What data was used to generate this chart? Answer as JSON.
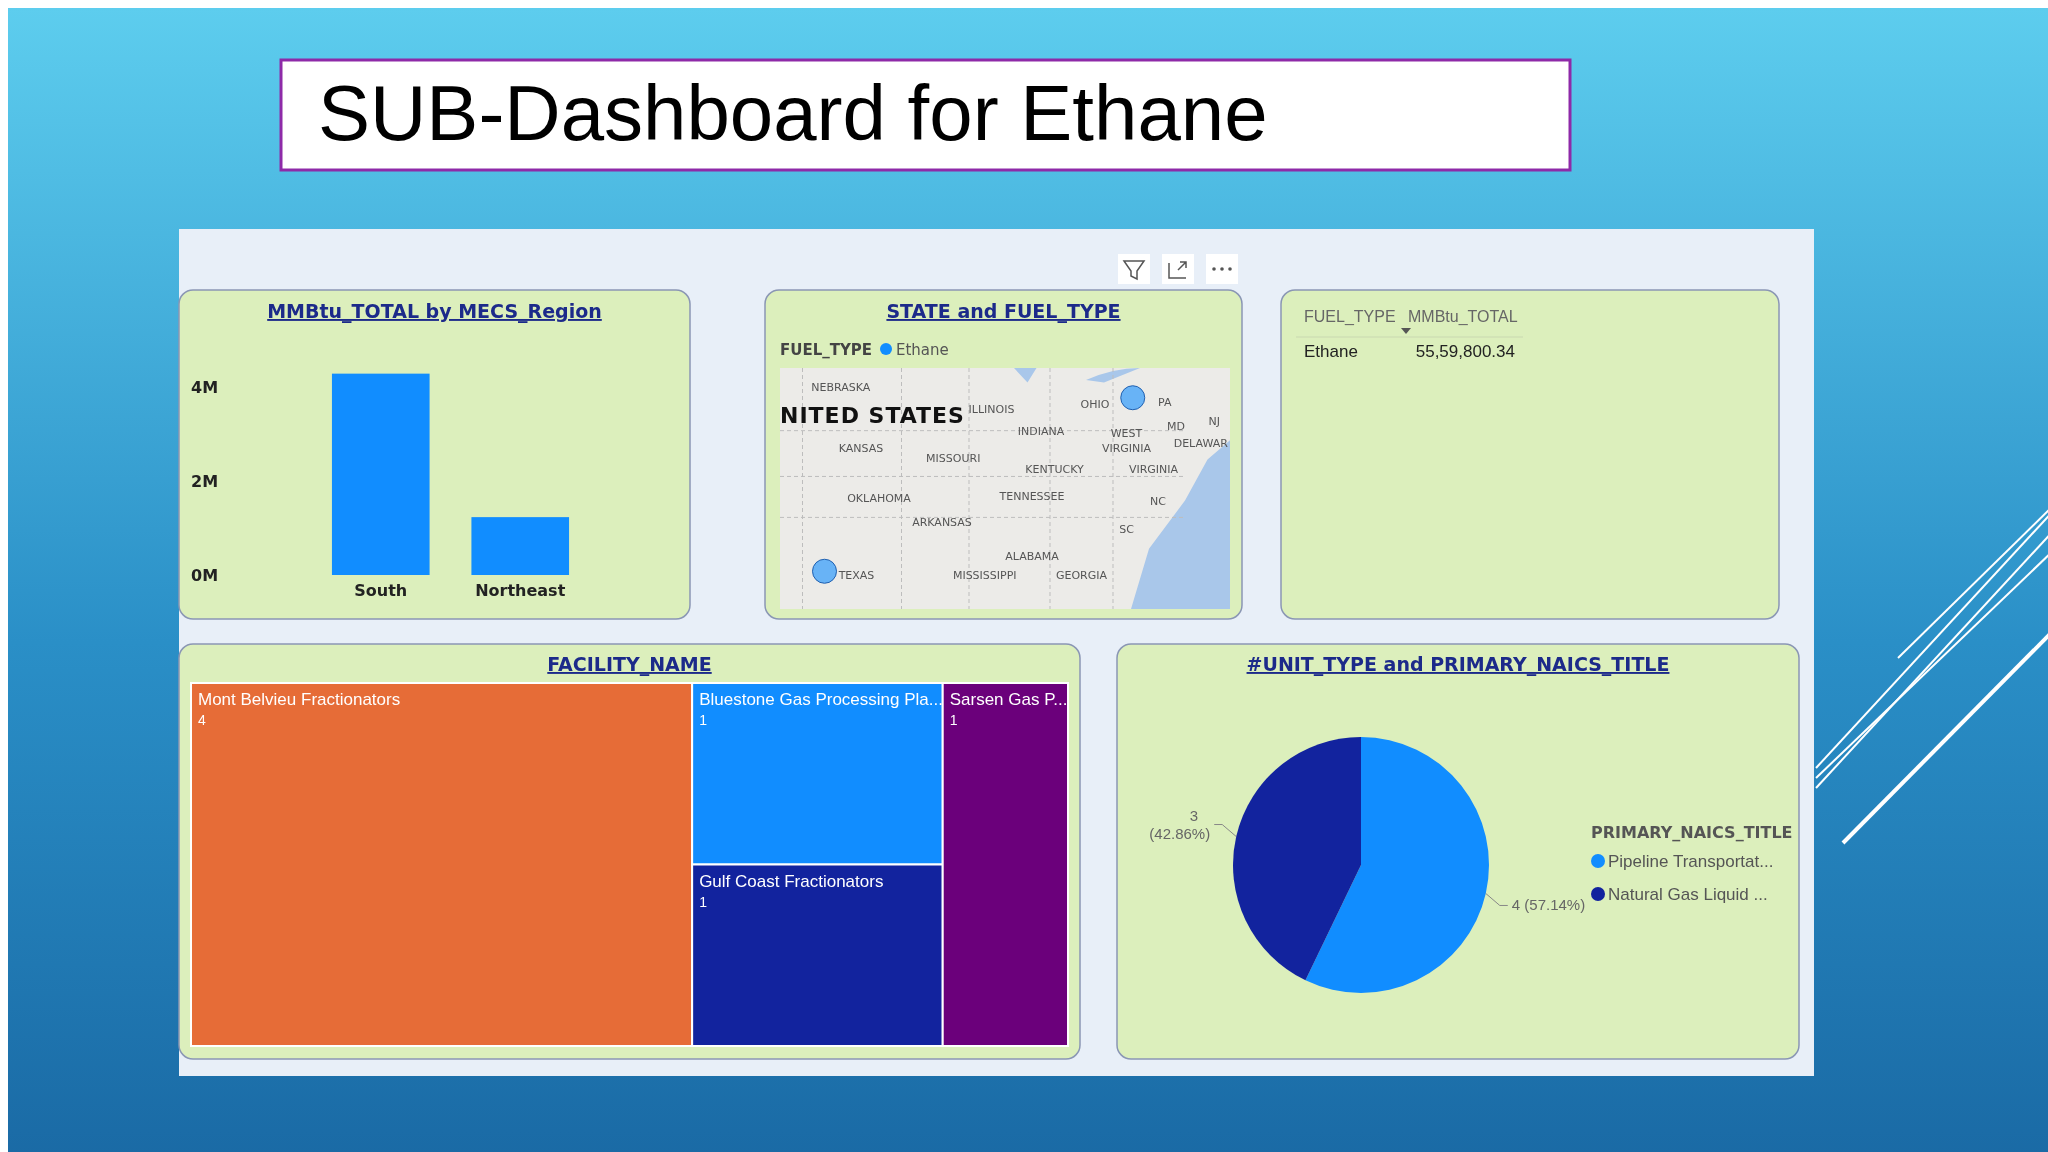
{
  "chart_data": [
    {
      "type": "other",
      "title": "SUB-Dashboard for Ethane"
    },
    {
      "type": "bar",
      "title": "MMBtu_TOTAL by MECS_Region",
      "categories": [
        "South",
        "Northeast"
      ],
      "values": [
        4280000,
        1230000
      ],
      "color": "#118dff",
      "ylim": [
        0,
        4400000
      ],
      "yticks": [
        {
          "value": 0,
          "label": "0M"
        },
        {
          "value": 2000000,
          "label": "2M"
        },
        {
          "value": 4000000,
          "label": "4M"
        }
      ],
      "grid": false
    },
    {
      "type": "other",
      "title": "STATE and FUEL_TYPE",
      "legend_title": "FUEL_TYPE",
      "legend": "top left",
      "series": [
        {
          "name": "Ethane",
          "color": "#118dff"
        }
      ],
      "annotations": [
        "NEBRASKA",
        "NITED STATES",
        "ILLINOIS",
        "OHIO",
        "INDIANA",
        "WEST",
        "VIRGINIA",
        "MD",
        "NJ",
        "DELAWAR",
        "KANSAS",
        "MISSOURI",
        "KENTUCKY",
        "VIRGINIA",
        "OKLAHOMA",
        "TENNESSEE",
        "NC",
        "ARKANSAS",
        "SC",
        "ALABAMA",
        "MISSISSIPPI",
        "GEORGIA",
        "TEXAS",
        "PA"
      ]
    },
    {
      "type": "other",
      "annotations": [
        "FUEL_TYPE",
        "MMBtu_TOTAL",
        "Ethane",
        "55,59,800.34"
      ]
    },
    {
      "type": "other",
      "title": "FACILITY_NAME",
      "categories": [
        "Mont Belvieu Fractionators",
        "Bluestone Gas Processing Pla...",
        "Gulf Coast Fractionators",
        "Sarsen Gas P..."
      ],
      "values": [
        4,
        1,
        1,
        1
      ],
      "colors": [
        "#e66c37",
        "#118dff",
        "#12239e",
        "#6b007b"
      ],
      "data_labels": true
    },
    {
      "type": "pie",
      "title": "#UNIT_TYPE and PRIMARY_NAICS_TITLE",
      "legend_title": "PRIMARY_NAICS_TITLE",
      "legend": "right",
      "categories": [
        "Pipeline Transportat...",
        "Natural Gas Liquid ..."
      ],
      "values": [
        4,
        3
      ],
      "colors": [
        "#118dff",
        "#12239e"
      ],
      "value_labels": [
        "4 (57.14%)",
        "3 (42.86%)"
      ]
    }
  ]
}
